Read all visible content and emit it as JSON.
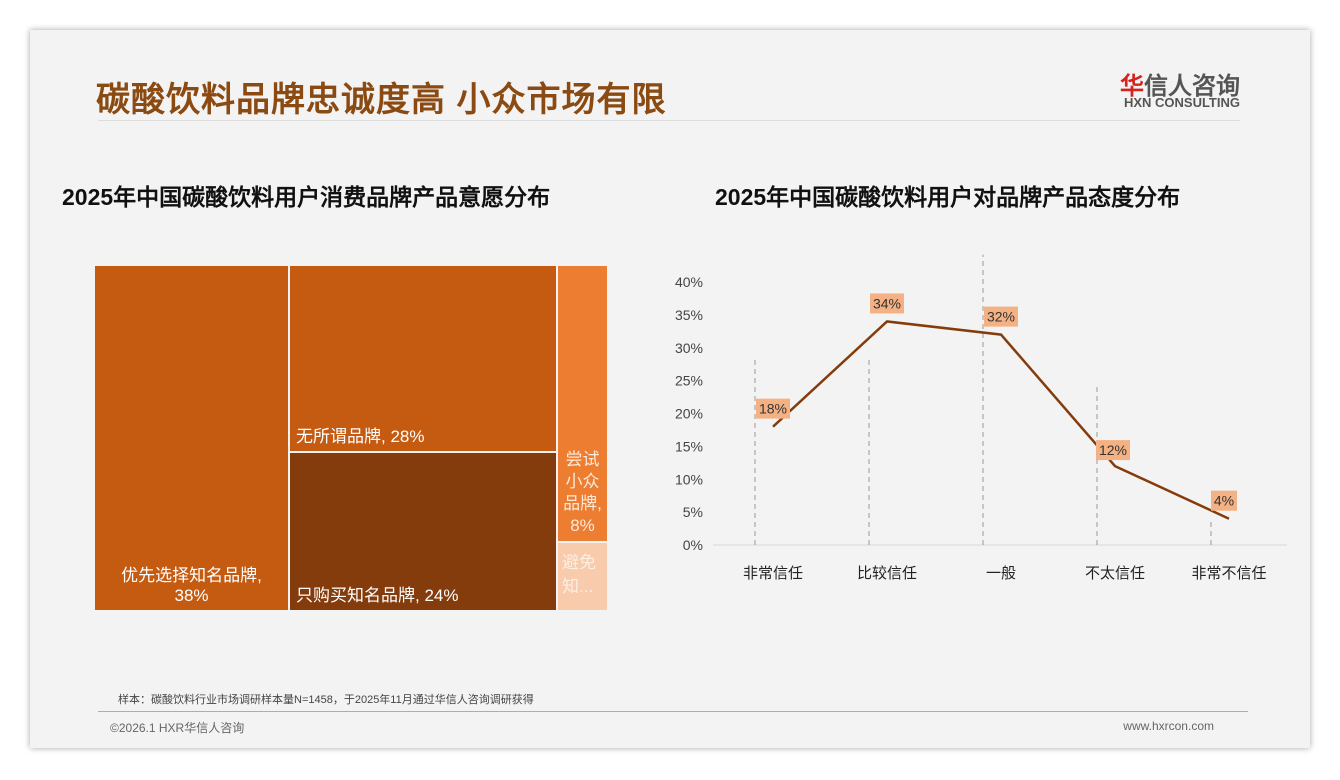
{
  "header": {
    "title": "碳酸饮料品牌忠诚度高 小众市场有限",
    "logo_cn_red": "华",
    "logo_cn": "信人咨询",
    "logo_en": "HXN CONSULTING"
  },
  "chart_data": [
    {
      "type": "treemap",
      "title": "2025年中国碳酸饮料用户消费品牌产品意愿分布",
      "items": [
        {
          "label": "优先选择知名品牌, 38%",
          "name": "优先选择知名品牌",
          "value": 38,
          "color": "#c55a11"
        },
        {
          "label": "无所谓品牌, 28%",
          "name": "无所谓品牌",
          "value": 28,
          "color": "#c55a11"
        },
        {
          "label": "只购买知名品牌, 24%",
          "name": "只购买知名品牌",
          "value": 24,
          "color": "#843c0c"
        },
        {
          "label": "尝试小众品牌, 8%",
          "name": "尝试小众品牌",
          "value": 8,
          "color": "#ed7d31"
        },
        {
          "label": "避免知...",
          "name": "避免知名品牌",
          "value": 2,
          "color": "#f4b183"
        }
      ]
    },
    {
      "type": "line",
      "title": "2025年中国碳酸饮料用户对品牌产品态度分布",
      "categories": [
        "非常信任",
        "比较信任",
        "一般",
        "不太信任",
        "非常不信任"
      ],
      "values": [
        18,
        34,
        32,
        12,
        4
      ],
      "data_labels": [
        "18%",
        "34%",
        "32%",
        "12%",
        "4%"
      ],
      "yticks": [
        "0%",
        "5%",
        "10%",
        "15%",
        "20%",
        "25%",
        "30%",
        "35%",
        "40%"
      ],
      "ylim": [
        0,
        40
      ],
      "color": "#843c0c",
      "label_bg": "#f4b183"
    }
  ],
  "footer": {
    "note": "样本：碳酸饮料行业市场调研样本量N=1458，于2025年11月通过华信人咨询调研获得",
    "copyright": "©2026.1 HXR华信人咨询",
    "url": "www.hxrcon.com"
  }
}
